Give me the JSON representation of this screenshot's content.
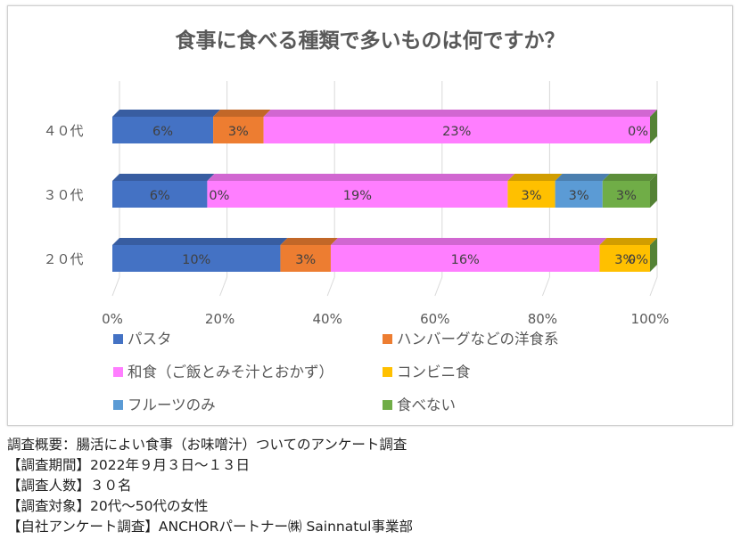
{
  "chart_data": {
    "type": "bar",
    "orientation": "horizontal",
    "stacked": "percent",
    "title": "食事に食べる種類で多いものは何ですか？",
    "categories": [
      "４０代",
      "３０代",
      "２０代"
    ],
    "x_ticks": [
      "0%",
      "20%",
      "40%",
      "60%",
      "80%",
      "100%"
    ],
    "xlim": [
      0,
      100
    ],
    "grid": true,
    "legend_position": "bottom",
    "series": [
      {
        "name": "パスタ",
        "color": "#4472c4",
        "values": [
          6,
          6,
          10
        ],
        "labels": [
          "6%",
          "6%",
          "10%"
        ]
      },
      {
        "name": "ハンバーグなどの洋食系",
        "color": "#ed7d31",
        "values": [
          3,
          0,
          3
        ],
        "labels": [
          "3%",
          "0%",
          "3%"
        ]
      },
      {
        "name": "和食（ご飯とみそ汁とおかず）",
        "color": "#ff7eff",
        "values": [
          23,
          19,
          16
        ],
        "labels": [
          "23%",
          "19%",
          "16%"
        ]
      },
      {
        "name": "コンビニ食",
        "color": "#ffc000",
        "values": [
          0,
          3,
          3
        ],
        "labels": [
          "",
          "3%",
          "3%"
        ]
      },
      {
        "name": "フルーツのみ",
        "color": "#5b9bd5",
        "values": [
          0,
          3,
          0
        ],
        "labels": [
          "",
          "3%",
          ""
        ]
      },
      {
        "name": "食べない",
        "color": "#70ad47",
        "values": [
          0,
          3,
          0
        ],
        "labels": [
          "0%",
          "3%",
          "0%"
        ]
      }
    ]
  },
  "notes": [
    "調査概要：腸活によい食事（お味噌汁）ついてのアンケート調査",
    "【調査期間】2022年９月３日～１３日",
    "【調査人数】３０名",
    "【調査対象】20代～50代の女性",
    "【自社アンケート調査】ANCHORパートナー㈱ Sainnatul事業部"
  ]
}
